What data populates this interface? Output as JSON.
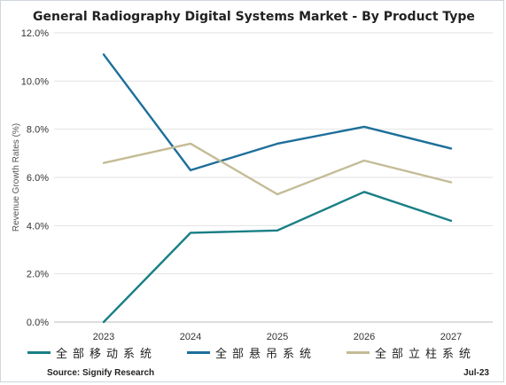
{
  "chart_data": {
    "type": "line",
    "title": "General Radiography Digital Systems Market - By Product Type",
    "ylabel": "Revenue Growth Rates (%)",
    "xlabel": "",
    "categories": [
      "2023",
      "2024",
      "2025",
      "2026",
      "2027"
    ],
    "ylim": [
      0,
      12
    ],
    "yticks": [
      "0.0%",
      "2.0%",
      "4.0%",
      "6.0%",
      "8.0%",
      "10.0%",
      "12.0%"
    ],
    "grid": "horizontal",
    "legend_position": "bottom",
    "series": [
      {
        "name": "全部移动系统",
        "color": "#1a7f86",
        "values": [
          0.0,
          3.7,
          3.8,
          5.4,
          4.2
        ]
      },
      {
        "name": "全部悬吊系统",
        "color": "#1d6f9a",
        "values": [
          11.1,
          6.3,
          7.4,
          8.1,
          7.2
        ]
      },
      {
        "name": "全部立柱系统",
        "color": "#c4bc96",
        "values": [
          6.6,
          7.4,
          5.3,
          6.7,
          5.8
        ]
      }
    ]
  },
  "footer": {
    "source": "Source: Signify Research",
    "date": "Jul-23"
  }
}
